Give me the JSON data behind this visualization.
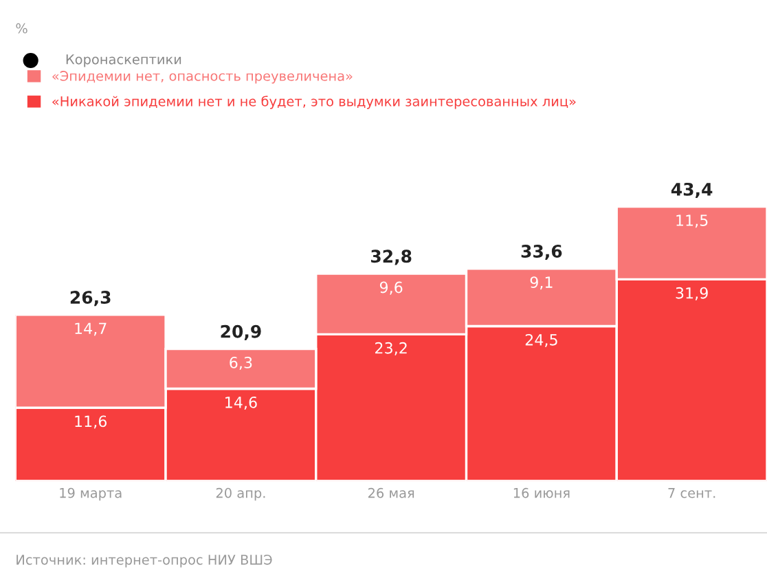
{
  "chart_data": {
    "type": "bar",
    "stacked": true,
    "subtitle": "%",
    "legend_title": "Коронаскептики",
    "categories": [
      "19 марта",
      "20 апр.",
      "26 мая",
      "16 июня",
      "7 сент."
    ],
    "series": [
      {
        "name": "«Никакой эпидемии нет и не будет, это выдумки заинтересованных лиц»",
        "color": "#f73e3e",
        "values": [
          11.6,
          14.6,
          23.2,
          24.5,
          31.9
        ],
        "value_labels": [
          "11,6",
          "14,6",
          "23,2",
          "24,5",
          "31,9"
        ]
      },
      {
        "name": "«Эпидемии нет, опасность преувеличена»",
        "color": "#f87676",
        "values": [
          14.7,
          6.3,
          9.6,
          9.1,
          11.5
        ],
        "value_labels": [
          "14,7",
          "6,3",
          "9,6",
          "9,1",
          "11,5"
        ]
      }
    ],
    "totals": [
      "26,3",
      "20,9",
      "32,8",
      "33,6",
      "43,4"
    ],
    "tick_labels": "x",
    "grid": false,
    "legend": "top left",
    "annotations": [
      "Источник: интернет-опрос НИУ ВШЭ"
    ]
  }
}
